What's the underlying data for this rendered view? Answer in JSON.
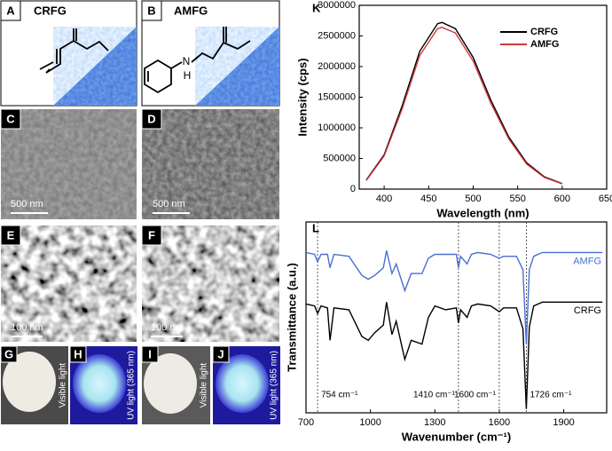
{
  "panels": [
    {
      "label": "A",
      "name": "CRFG"
    },
    {
      "label": "B",
      "name": "AMFG",
      "atoms": [
        "N",
        "H"
      ]
    },
    {
      "label": "C",
      "scale": "500 nm"
    },
    {
      "label": "D",
      "scale": "500 nm"
    },
    {
      "label": "E",
      "scale": "100 nm"
    },
    {
      "label": "F",
      "scale": "100 nm"
    },
    {
      "label": "G",
      "caption": "Visible light"
    },
    {
      "label": "H",
      "caption": "UV light (365 nm)"
    },
    {
      "label": "I",
      "caption": "Visible light"
    },
    {
      "label": "J",
      "caption": "UV light (365 nm)"
    }
  ],
  "chart_data": [
    {
      "type": "line",
      "panel": "K",
      "xlabel": "Wavelength (nm)",
      "ylabel": "Intensity (cps)",
      "x": [
        380,
        400,
        420,
        440,
        460,
        465,
        480,
        500,
        520,
        540,
        560,
        580,
        600
      ],
      "series": [
        {
          "name": "CRFG",
          "color": "#000000",
          "values": [
            150000,
            560000,
            1350000,
            2250000,
            2700000,
            2720000,
            2620000,
            2150000,
            1450000,
            850000,
            430000,
            200000,
            90000
          ]
        },
        {
          "name": "AMFG",
          "color": "#d03a3a",
          "values": [
            140000,
            540000,
            1300000,
            2180000,
            2620000,
            2640000,
            2550000,
            2090000,
            1400000,
            820000,
            410000,
            190000,
            85000
          ]
        }
      ],
      "xlim": [
        372,
        650
      ],
      "xticks": [
        400,
        450,
        500,
        550,
        600,
        650
      ],
      "ylim": [
        0,
        3000000
      ],
      "yticks": [
        0,
        500000,
        1000000,
        1500000,
        2000000,
        2500000,
        3000000
      ],
      "legend": "upper right"
    },
    {
      "type": "line",
      "panel": "L",
      "xlabel": "Wavenumber (cm⁻¹)",
      "ylabel": "Transmittance (a.u.)",
      "x": [
        700,
        740,
        754,
        770,
        800,
        812,
        830,
        900,
        960,
        990,
        1020,
        1060,
        1075,
        1100,
        1120,
        1160,
        1190,
        1240,
        1270,
        1300,
        1350,
        1400,
        1410,
        1420,
        1450,
        1470,
        1500,
        1560,
        1600,
        1620,
        1680,
        1710,
        1726,
        1740,
        1760,
        1800,
        1900,
        2000,
        2080
      ],
      "series": [
        {
          "name": "AMFG",
          "color": "#4a6fd6",
          "values": [
            8.4,
            8.3,
            7.9,
            8.3,
            8.3,
            7.6,
            8.3,
            8.2,
            7.2,
            7.0,
            7.2,
            7.6,
            8.5,
            7.3,
            7.8,
            6.4,
            7.3,
            7.3,
            8.1,
            8.3,
            8.3,
            8.3,
            7.6,
            8.2,
            7.8,
            8.3,
            8.4,
            8.3,
            8.1,
            8.2,
            8.2,
            7.5,
            3.6,
            7.5,
            8.2,
            8.4,
            8.4,
            8.4,
            8.4
          ]
        },
        {
          "name": "CRFG",
          "color": "#000000",
          "values": [
            5.7,
            5.6,
            5.2,
            5.6,
            5.5,
            3.8,
            5.5,
            5.4,
            4.0,
            3.8,
            4.2,
            4.6,
            5.8,
            4.1,
            4.8,
            2.8,
            3.8,
            3.6,
            5.0,
            5.6,
            5.4,
            5.5,
            4.7,
            5.4,
            5.0,
            5.6,
            5.7,
            5.6,
            5.3,
            5.5,
            5.5,
            4.4,
            0.2,
            4.5,
            5.6,
            5.8,
            5.8,
            5.8,
            5.8
          ]
        }
      ],
      "xlim": [
        700,
        2100
      ],
      "xticks": [
        700,
        1000,
        1300,
        1600,
        1900
      ],
      "ylim": [
        0,
        10
      ],
      "markers": [
        {
          "value": 754,
          "label": "754 cm⁻¹"
        },
        {
          "value": 1410,
          "label": "1410 cm⁻¹"
        },
        {
          "value": 1600,
          "label": "1600 cm⁻¹"
        },
        {
          "value": 1726,
          "label": "1726 cm⁻¹"
        }
      ],
      "legend": "line ends"
    }
  ]
}
